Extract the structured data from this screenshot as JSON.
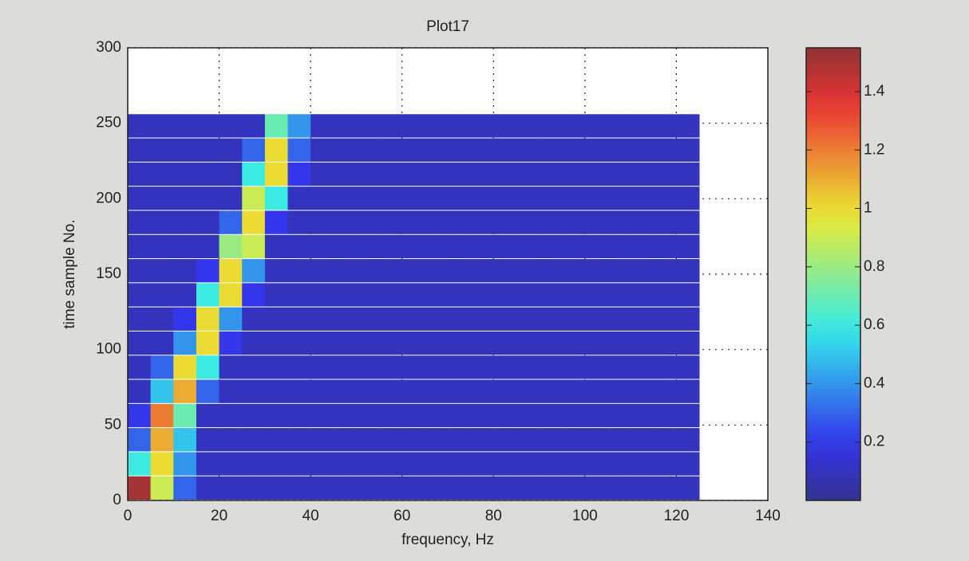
{
  "chart_data": {
    "type": "heatmap",
    "title": "Plot17",
    "xlabel": "frequency, Hz",
    "ylabel": "time sample No.",
    "colormap": "jet",
    "grid": true,
    "xlim": [
      0,
      140
    ],
    "ylim": [
      0,
      300
    ],
    "xticks": [
      0,
      20,
      40,
      60,
      80,
      100,
      120,
      140
    ],
    "yticks": [
      0,
      50,
      100,
      150,
      200,
      250,
      300
    ],
    "clim": [
      0,
      1.55
    ],
    "cticks": [
      0.2,
      0.4,
      0.6,
      0.8,
      1,
      1.2,
      1.4
    ],
    "x_edges": [
      0,
      5,
      10,
      15,
      20,
      25,
      30,
      35,
      40,
      45,
      50,
      55,
      60,
      65,
      70,
      75,
      80,
      85,
      90,
      95,
      100,
      105,
      110,
      115,
      120,
      125
    ],
    "y_edges": [
      0,
      16,
      32,
      48,
      64,
      80,
      96,
      112,
      128,
      144,
      160,
      176,
      192,
      208,
      224,
      240,
      256
    ],
    "z": [
      [
        1.5,
        0.9,
        0.3,
        0.1,
        0.1,
        0.1,
        0.1,
        0.1,
        0.1,
        0.1,
        0.1,
        0.1,
        0.1,
        0.1,
        0.1,
        0.1,
        0.1,
        0.1,
        0.1,
        0.1,
        0.1,
        0.1,
        0.1,
        0.1,
        0.1
      ],
      [
        0.6,
        1.0,
        0.4,
        0.1,
        0.1,
        0.1,
        0.1,
        0.1,
        0.1,
        0.1,
        0.1,
        0.1,
        0.1,
        0.1,
        0.1,
        0.1,
        0.1,
        0.1,
        0.1,
        0.1,
        0.1,
        0.1,
        0.1,
        0.1,
        0.1
      ],
      [
        0.3,
        1.1,
        0.5,
        0.1,
        0.1,
        0.1,
        0.1,
        0.1,
        0.1,
        0.1,
        0.1,
        0.1,
        0.1,
        0.1,
        0.1,
        0.1,
        0.1,
        0.1,
        0.1,
        0.1,
        0.1,
        0.1,
        0.1,
        0.1,
        0.1
      ],
      [
        0.2,
        1.2,
        0.7,
        0.1,
        0.1,
        0.1,
        0.1,
        0.1,
        0.1,
        0.1,
        0.1,
        0.1,
        0.1,
        0.1,
        0.1,
        0.1,
        0.1,
        0.1,
        0.1,
        0.1,
        0.1,
        0.1,
        0.1,
        0.1,
        0.1
      ],
      [
        0.1,
        0.5,
        1.1,
        0.3,
        0.1,
        0.1,
        0.1,
        0.1,
        0.1,
        0.1,
        0.1,
        0.1,
        0.1,
        0.1,
        0.1,
        0.1,
        0.1,
        0.1,
        0.1,
        0.1,
        0.1,
        0.1,
        0.1,
        0.1,
        0.1
      ],
      [
        0.1,
        0.3,
        1.0,
        0.6,
        0.1,
        0.1,
        0.1,
        0.1,
        0.1,
        0.1,
        0.1,
        0.1,
        0.1,
        0.1,
        0.1,
        0.1,
        0.1,
        0.1,
        0.1,
        0.1,
        0.1,
        0.1,
        0.1,
        0.1,
        0.1
      ],
      [
        0.1,
        0.1,
        0.4,
        1.0,
        0.2,
        0.1,
        0.1,
        0.1,
        0.1,
        0.1,
        0.1,
        0.1,
        0.1,
        0.1,
        0.1,
        0.1,
        0.1,
        0.1,
        0.1,
        0.1,
        0.1,
        0.1,
        0.1,
        0.1,
        0.1
      ],
      [
        0.1,
        0.1,
        0.2,
        1.0,
        0.4,
        0.1,
        0.1,
        0.1,
        0.1,
        0.1,
        0.1,
        0.1,
        0.1,
        0.1,
        0.1,
        0.1,
        0.1,
        0.1,
        0.1,
        0.1,
        0.1,
        0.1,
        0.1,
        0.1,
        0.1
      ],
      [
        0.1,
        0.1,
        0.1,
        0.6,
        1.0,
        0.2,
        0.1,
        0.1,
        0.1,
        0.1,
        0.1,
        0.1,
        0.1,
        0.1,
        0.1,
        0.1,
        0.1,
        0.1,
        0.1,
        0.1,
        0.1,
        0.1,
        0.1,
        0.1,
        0.1
      ],
      [
        0.1,
        0.1,
        0.1,
        0.2,
        1.0,
        0.4,
        0.1,
        0.1,
        0.1,
        0.1,
        0.1,
        0.1,
        0.1,
        0.1,
        0.1,
        0.1,
        0.1,
        0.1,
        0.1,
        0.1,
        0.1,
        0.1,
        0.1,
        0.1,
        0.1
      ],
      [
        0.1,
        0.1,
        0.1,
        0.1,
        0.8,
        0.9,
        0.1,
        0.1,
        0.1,
        0.1,
        0.1,
        0.1,
        0.1,
        0.1,
        0.1,
        0.1,
        0.1,
        0.1,
        0.1,
        0.1,
        0.1,
        0.1,
        0.1,
        0.1,
        0.1
      ],
      [
        0.1,
        0.1,
        0.1,
        0.1,
        0.3,
        1.0,
        0.2,
        0.1,
        0.1,
        0.1,
        0.1,
        0.1,
        0.1,
        0.1,
        0.1,
        0.1,
        0.1,
        0.1,
        0.1,
        0.1,
        0.1,
        0.1,
        0.1,
        0.1,
        0.1
      ],
      [
        0.1,
        0.1,
        0.1,
        0.1,
        0.1,
        0.9,
        0.6,
        0.1,
        0.1,
        0.1,
        0.1,
        0.1,
        0.1,
        0.1,
        0.1,
        0.1,
        0.1,
        0.1,
        0.1,
        0.1,
        0.1,
        0.1,
        0.1,
        0.1,
        0.1
      ],
      [
        0.1,
        0.1,
        0.1,
        0.1,
        0.1,
        0.6,
        1.0,
        0.2,
        0.1,
        0.1,
        0.1,
        0.1,
        0.1,
        0.1,
        0.1,
        0.1,
        0.1,
        0.1,
        0.1,
        0.1,
        0.1,
        0.1,
        0.1,
        0.1,
        0.1
      ],
      [
        0.1,
        0.1,
        0.1,
        0.1,
        0.1,
        0.3,
        1.0,
        0.3,
        0.1,
        0.1,
        0.1,
        0.1,
        0.1,
        0.1,
        0.1,
        0.1,
        0.1,
        0.1,
        0.1,
        0.1,
        0.1,
        0.1,
        0.1,
        0.1,
        0.1
      ],
      [
        0.1,
        0.1,
        0.1,
        0.1,
        0.1,
        0.1,
        0.7,
        0.4,
        0.1,
        0.1,
        0.1,
        0.1,
        0.1,
        0.1,
        0.1,
        0.1,
        0.1,
        0.1,
        0.1,
        0.1,
        0.1,
        0.1,
        0.1,
        0.1,
        0.1
      ]
    ]
  }
}
